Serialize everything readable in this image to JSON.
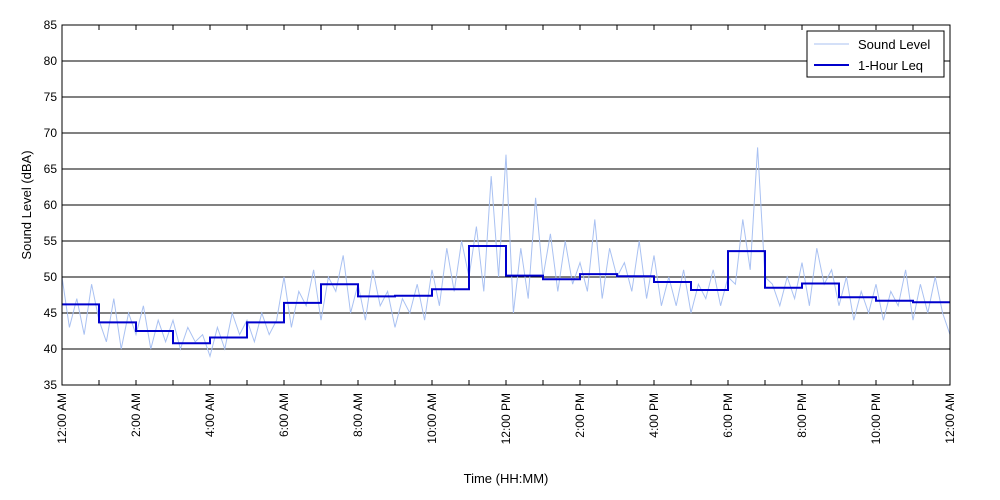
{
  "chart_data": {
    "type": "line",
    "title": "",
    "xlabel": "Time (HH:MM)",
    "ylabel": "Sound Level (dBA)",
    "xlim": [
      0,
      24
    ],
    "ylim": [
      35,
      85
    ],
    "y_ticks": [
      35,
      40,
      45,
      50,
      55,
      60,
      65,
      70,
      75,
      80,
      85
    ],
    "x_tick_labels": [
      {
        "hour": 0,
        "label": "12:00 AM"
      },
      {
        "hour": 2,
        "label": "2:00 AM"
      },
      {
        "hour": 4,
        "label": "4:00 AM"
      },
      {
        "hour": 6,
        "label": "6:00 AM"
      },
      {
        "hour": 8,
        "label": "8:00 AM"
      },
      {
        "hour": 10,
        "label": "10:00 AM"
      },
      {
        "hour": 12,
        "label": "12:00 PM"
      },
      {
        "hour": 14,
        "label": "2:00 PM"
      },
      {
        "hour": 16,
        "label": "4:00 PM"
      },
      {
        "hour": 18,
        "label": "6:00 PM"
      },
      {
        "hour": 20,
        "label": "8:00 PM"
      },
      {
        "hour": 22,
        "label": "10:00 PM"
      },
      {
        "hour": 24,
        "label": "12:00 AM"
      }
    ],
    "grid": "horizontal",
    "legend_position": "top-right",
    "series": [
      {
        "name": "Sound Level",
        "color": "#a9c1f2",
        "x": [
          0,
          0.2,
          0.4,
          0.6,
          0.8,
          1.0,
          1.2,
          1.4,
          1.6,
          1.8,
          2.0,
          2.2,
          2.4,
          2.6,
          2.8,
          3.0,
          3.2,
          3.4,
          3.6,
          3.8,
          4.0,
          4.2,
          4.4,
          4.6,
          4.8,
          5.0,
          5.2,
          5.4,
          5.6,
          5.8,
          6.0,
          6.2,
          6.4,
          6.6,
          6.8,
          7.0,
          7.2,
          7.4,
          7.6,
          7.8,
          8.0,
          8.2,
          8.4,
          8.6,
          8.8,
          9.0,
          9.2,
          9.4,
          9.6,
          9.8,
          10.0,
          10.2,
          10.4,
          10.6,
          10.8,
          11.0,
          11.2,
          11.4,
          11.6,
          11.8,
          12.0,
          12.2,
          12.4,
          12.6,
          12.8,
          13.0,
          13.2,
          13.4,
          13.6,
          13.8,
          14.0,
          14.2,
          14.4,
          14.6,
          14.8,
          15.0,
          15.2,
          15.4,
          15.6,
          15.8,
          16.0,
          16.2,
          16.4,
          16.6,
          16.8,
          17.0,
          17.2,
          17.4,
          17.6,
          17.8,
          18.0,
          18.2,
          18.4,
          18.6,
          18.8,
          19.0,
          19.2,
          19.4,
          19.6,
          19.8,
          20.0,
          20.2,
          20.4,
          20.6,
          20.8,
          21.0,
          21.2,
          21.4,
          21.6,
          21.8,
          22.0,
          22.2,
          22.4,
          22.6,
          22.8,
          23.0,
          23.2,
          23.4,
          23.6,
          23.8,
          24.0
        ],
        "y": [
          50,
          43,
          47,
          42,
          49,
          44,
          41,
          47,
          40,
          45,
          42,
          46,
          40,
          44,
          41,
          44,
          40,
          43,
          41,
          42,
          39,
          43,
          40,
          45,
          42,
          44,
          41,
          45,
          42,
          44,
          50,
          43,
          48,
          46,
          51,
          44,
          50,
          48,
          53,
          45,
          49,
          44,
          51,
          46,
          48,
          43,
          47,
          45,
          49,
          44,
          51,
          46,
          54,
          48,
          55,
          50,
          57,
          48,
          64,
          50,
          67,
          45,
          54,
          47,
          61,
          50,
          56,
          48,
          55,
          49,
          52,
          48,
          58,
          47,
          54,
          50,
          52,
          48,
          55,
          47,
          53,
          46,
          50,
          46,
          51,
          45,
          49,
          47,
          51,
          46,
          50,
          49,
          58,
          51,
          68,
          50,
          49,
          46,
          50,
          47,
          52,
          46,
          54,
          49,
          51,
          46,
          50,
          44,
          48,
          45,
          49,
          44,
          48,
          46,
          51,
          44,
          49,
          45,
          50,
          45,
          42
        ]
      },
      {
        "name": "1-Hour Leq",
        "color": "#0000cc",
        "step": true,
        "x": [
          0,
          1,
          2,
          3,
          4,
          5,
          6,
          7,
          8,
          9,
          10,
          11,
          12,
          13,
          14,
          15,
          16,
          17,
          18,
          19,
          20,
          21,
          22,
          23
        ],
        "y": [
          46.2,
          43.7,
          42.5,
          40.8,
          41.6,
          43.7,
          46.4,
          49.0,
          47.3,
          47.4,
          48.3,
          54.3,
          50.2,
          49.7,
          50.4,
          50.1,
          49.3,
          48.2,
          53.6,
          48.5,
          49.1,
          47.2,
          46.7,
          46.5
        ]
      }
    ]
  }
}
